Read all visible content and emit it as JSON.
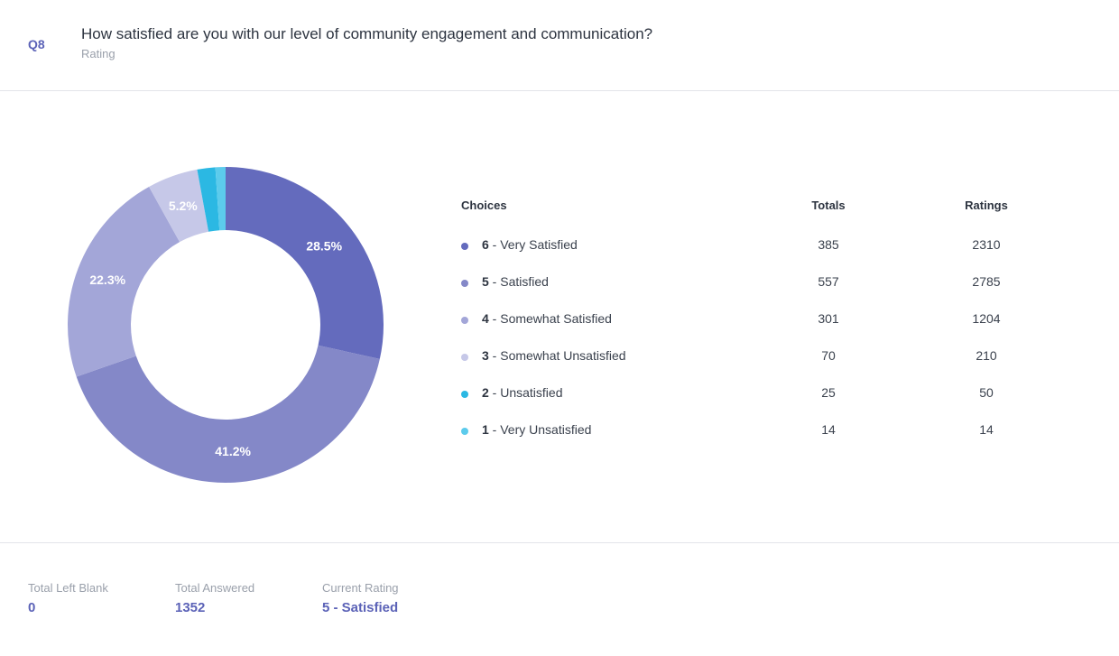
{
  "question": {
    "number": "Q8",
    "title": "How satisfied are you with our level of community engagement and communication?",
    "type": "Rating"
  },
  "table": {
    "headers": {
      "choice": "Choices",
      "totals": "Totals",
      "ratings": "Ratings"
    },
    "rows": [
      {
        "value": "6",
        "label": " - Very Satisfied",
        "total": "385",
        "rating": "2310",
        "color": "#646bbd"
      },
      {
        "value": "5",
        "label": " - Satisfied",
        "total": "557",
        "rating": "2785",
        "color": "#8488c8"
      },
      {
        "value": "4",
        "label": " - Somewhat Satisfied",
        "total": "301",
        "rating": "1204",
        "color": "#a3a6d8"
      },
      {
        "value": "3",
        "label": " - Somewhat Unsatisfied",
        "total": "70",
        "rating": "210",
        "color": "#c6c8e8"
      },
      {
        "value": "2",
        "label": " - Unsatisfied",
        "total": "25",
        "rating": "50",
        "color": "#2bb8e3"
      },
      {
        "value": "1",
        "label": " - Very Unsatisfied",
        "total": "14",
        "rating": "14",
        "color": "#5ccbec"
      }
    ]
  },
  "chart_data": {
    "type": "pie",
    "style": "donut",
    "categories": [
      "6 - Very Satisfied",
      "5 - Satisfied",
      "4 - Somewhat Satisfied",
      "3 - Somewhat Unsatisfied",
      "2 - Unsatisfied",
      "1 - Very Unsatisfied"
    ],
    "values": [
      385,
      557,
      301,
      70,
      25,
      14
    ],
    "slice_labels": [
      "28.5%",
      "41.2%",
      "22.3%",
      "5.2%",
      "",
      ""
    ],
    "colors": [
      "#646bbd",
      "#8488c8",
      "#a3a6d8",
      "#c6c8e8",
      "#2bb8e3",
      "#5ccbec"
    ]
  },
  "footer": {
    "left_blank_label": "Total Left Blank",
    "left_blank_value": "0",
    "answered_label": "Total Answered",
    "answered_value": "1352",
    "current_label": "Current Rating",
    "current_value": "5 - Satisfied"
  }
}
